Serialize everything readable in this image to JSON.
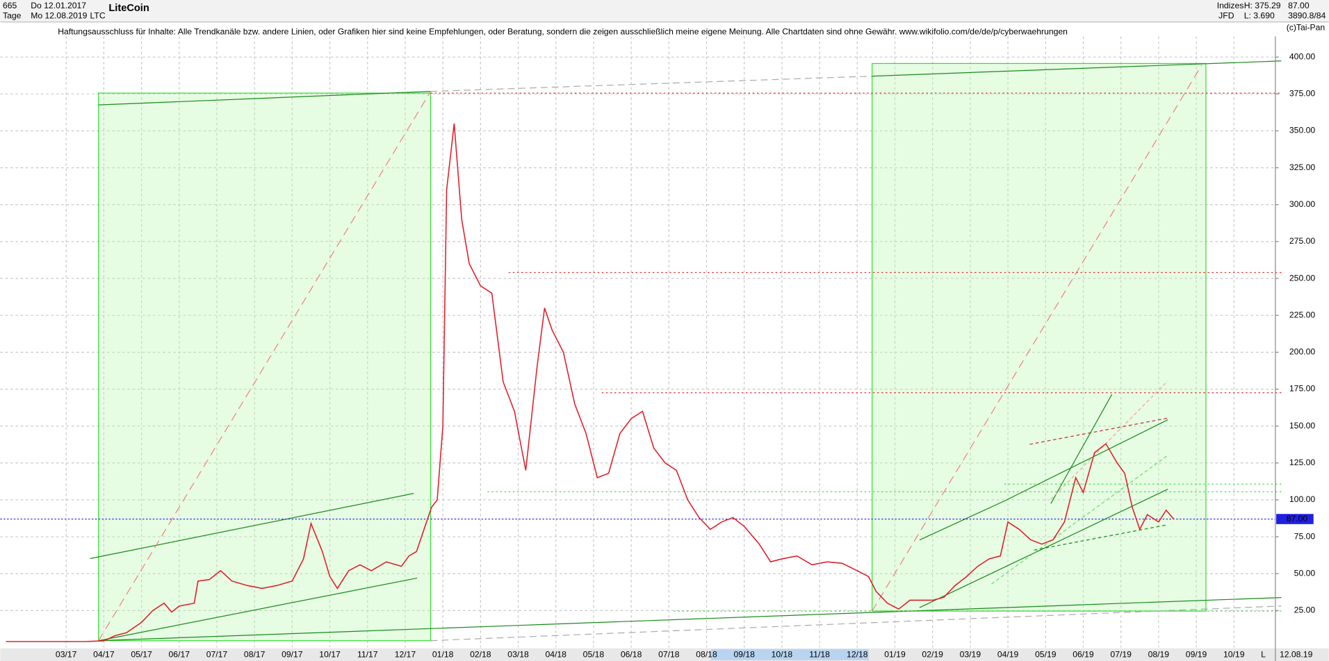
{
  "header": {
    "count": "665",
    "from": "Do 12.01.2017",
    "period": "Tage",
    "to": "Mo 12.08.2019",
    "symbol": "LTC",
    "name": "LiteCoin",
    "market": "Indizes",
    "broker": "JFD",
    "high": "H: 375.29",
    "low": "L: 3.690",
    "last": "87.00",
    "volume": "3890.8/84",
    "copyright": "(c)Tai-Pan",
    "disclaimer": "Haftungsausschluss für Inhalte: Alle Trendkanäle bzw. andere Linien, oder Grafiken hier sind keine Empfehlungen, oder Beratung, sondern die zeigen ausschließlich meine eigene Meinung. Alle Chartdaten sind ohne Gewähr.  www.wikifolio.com/de/de/p/cyberwaehrungen",
    "date": "12.08.19",
    "scale": "L"
  },
  "chart_data": {
    "type": "line",
    "title": "LiteCoin",
    "x": [
      0.4,
      2.5,
      3.0,
      3.3,
      3.6,
      4.0,
      4.3,
      4.6,
      4.8,
      5.0,
      5.4,
      5.5,
      5.8,
      6.1,
      6.4,
      6.8,
      7.2,
      7.6,
      8.0,
      8.3,
      8.5,
      8.8,
      9.0,
      9.2,
      9.5,
      9.8,
      10.1,
      10.5,
      10.9,
      11.1,
      11.3,
      11.5,
      11.7,
      11.85,
      12.0,
      12.1,
      12.3,
      12.5,
      12.7,
      13.0,
      13.3,
      13.6,
      13.9,
      14.2,
      14.5,
      14.7,
      14.9,
      15.2,
      15.5,
      15.8,
      16.1,
      16.4,
      16.7,
      17.0,
      17.3,
      17.6,
      17.9,
      18.2,
      18.5,
      18.8,
      19.1,
      19.4,
      19.7,
      20.0,
      20.4,
      20.7,
      21.0,
      21.4,
      21.8,
      22.2,
      22.6,
      23.0,
      23.3,
      23.5,
      23.8,
      24.1,
      24.4,
      24.7,
      25.0,
      25.3,
      25.6,
      25.9,
      26.2,
      26.5,
      26.8,
      27.0,
      27.3,
      27.6,
      27.9,
      28.2,
      28.5,
      28.8,
      29.0,
      29.3,
      29.6,
      29.9,
      30.1,
      30.3,
      30.5,
      30.7,
      31.0,
      31.2,
      31.4
    ],
    "series": [
      {
        "name": "LTC",
        "color": "#e0202a",
        "values": [
          4,
          4,
          4.5,
          8,
          10,
          17,
          25,
          30,
          24,
          28,
          30,
          45,
          46,
          52,
          45,
          42,
          40,
          42,
          45,
          60,
          84,
          65,
          48,
          40,
          52,
          56,
          52,
          58,
          55,
          62,
          65,
          80,
          95,
          100,
          150,
          310,
          355,
          290,
          260,
          245,
          240,
          180,
          160,
          120,
          190,
          230,
          215,
          200,
          165,
          145,
          115,
          118,
          145,
          155,
          160,
          135,
          125,
          120,
          100,
          88,
          80,
          85,
          88,
          82,
          70,
          58,
          60,
          62,
          56,
          58,
          57,
          52,
          48,
          38,
          30,
          26,
          32,
          32,
          32,
          34,
          42,
          48,
          55,
          60,
          62,
          85,
          80,
          73,
          70,
          73,
          85,
          115,
          105,
          132,
          138,
          125,
          118,
          95,
          80,
          90,
          85,
          93,
          87
        ]
      }
    ],
    "current_value": {
      "value": 87,
      "label": "87.00"
    },
    "xlim": [
      0.25,
      34.1
    ],
    "xticks": [
      {
        "value": 2,
        "label": "03/17"
      },
      {
        "value": 3,
        "label": "04/17"
      },
      {
        "value": 4,
        "label": "05/17"
      },
      {
        "value": 5,
        "label": "06/17"
      },
      {
        "value": 6,
        "label": "07/17"
      },
      {
        "value": 7,
        "label": "08/17"
      },
      {
        "value": 8,
        "label": "09/17"
      },
      {
        "value": 9,
        "label": "10/17"
      },
      {
        "value": 10,
        "label": "11/17"
      },
      {
        "value": 11,
        "label": "12/17"
      },
      {
        "value": 12,
        "label": "01/18"
      },
      {
        "value": 13,
        "label": "02/18"
      },
      {
        "value": 14,
        "label": "03/18"
      },
      {
        "value": 15,
        "label": "04/18"
      },
      {
        "value": 16,
        "label": "05/18"
      },
      {
        "value": 17,
        "label": "06/18"
      },
      {
        "value": 18,
        "label": "07/18"
      },
      {
        "value": 19,
        "label": "08/18"
      },
      {
        "value": 20,
        "label": "09/18"
      },
      {
        "value": 21,
        "label": "10/18"
      },
      {
        "value": 22,
        "label": "11/18"
      },
      {
        "value": 23,
        "label": "12/18"
      },
      {
        "value": 24,
        "label": "01/19"
      },
      {
        "value": 25,
        "label": "02/19"
      },
      {
        "value": 26,
        "label": "03/19"
      },
      {
        "value": 27,
        "label": "04/19"
      },
      {
        "value": 28,
        "label": "05/19"
      },
      {
        "value": 29,
        "label": "06/19"
      },
      {
        "value": 30,
        "label": "07/19"
      },
      {
        "value": 31,
        "label": "08/19"
      },
      {
        "value": 32,
        "label": "09/19"
      },
      {
        "value": 33,
        "label": "10/19"
      }
    ],
    "ylim": [
      0,
      414
    ],
    "yticks": [
      {
        "value": 25,
        "label": "25.00"
      },
      {
        "value": 50,
        "label": "50.00"
      },
      {
        "value": 75,
        "label": "75.00"
      },
      {
        "value": 100,
        "label": "100.00"
      },
      {
        "value": 125,
        "label": "125.00"
      },
      {
        "value": 150,
        "label": "150.00"
      },
      {
        "value": 175,
        "label": "175.00"
      },
      {
        "value": 200,
        "label": "200.00"
      },
      {
        "value": 225,
        "label": "225.00"
      },
      {
        "value": 250,
        "label": "250.00"
      },
      {
        "value": 275,
        "label": "275.00"
      },
      {
        "value": 300,
        "label": "300.00"
      },
      {
        "value": 325,
        "label": "325.00"
      },
      {
        "value": 350,
        "label": "350.00"
      },
      {
        "value": 375,
        "label": "375.00"
      },
      {
        "value": 400,
        "label": "400.00"
      }
    ],
    "grid": true
  }
}
